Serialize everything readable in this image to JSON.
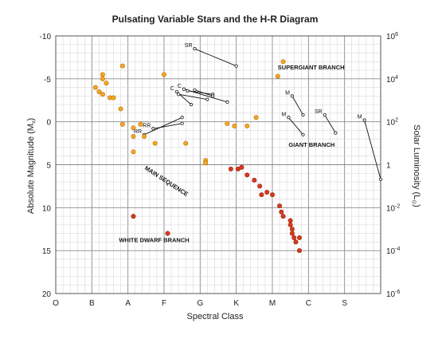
{
  "chart_data": {
    "type": "scatter",
    "title": "Pulsating Variable Stars and the H-R Diagram",
    "xlabel": "Spectral Class",
    "ylabel": "Absolute Magnitude (M",
    "ylabel_sub": "v",
    "ylabel_end": ")",
    "y2label": "Solar Luminosity (L",
    "y2label_sub": "⊙",
    "y2label_end": ")",
    "x_categories": [
      "O",
      "B",
      "A",
      "F",
      "G",
      "K",
      "M",
      "C",
      "S"
    ],
    "ylim": [
      -10,
      20
    ],
    "y_inverted": true,
    "y_ticks": [
      "-10",
      "-5",
      "0",
      "5",
      "10",
      "15",
      "20"
    ],
    "y2_ticks": [
      {
        "base": "10",
        "exp": "6"
      },
      {
        "base": "10",
        "exp": "4"
      },
      {
        "base": "10",
        "exp": "2"
      },
      {
        "base": "1",
        "exp": ""
      },
      {
        "base": "10",
        "exp": "-2"
      },
      {
        "base": "10",
        "exp": "-4"
      },
      {
        "base": "10",
        "exp": "-6"
      }
    ],
    "grid": true,
    "annotations": [
      {
        "text": "SUPERGIANT BRANCH",
        "x": 6.15,
        "y": -6.1
      },
      {
        "text": "GIANT BRANCH",
        "x": 6.45,
        "y": 2.9
      },
      {
        "text": "MAIN SEQUENCE",
        "x": 2.45,
        "y": 5.5,
        "rotate": 33
      },
      {
        "text": "WHITE DWARF BRANCH",
        "x": 1.75,
        "y": 14.0
      }
    ],
    "series": [
      {
        "type": "orange",
        "color": "#f5a623",
        "points": [
          [
            1.1,
            -4.0
          ],
          [
            1.2,
            -3.5
          ],
          [
            1.3,
            -5.5
          ],
          [
            1.3,
            -5.0
          ],
          [
            1.4,
            -4.5
          ],
          [
            1.3,
            -3.2
          ],
          [
            1.5,
            -2.8
          ],
          [
            1.6,
            -2.8
          ],
          [
            1.85,
            -6.5
          ],
          [
            1.8,
            -1.5
          ],
          [
            1.85,
            0.3
          ],
          [
            2.15,
            0.7
          ],
          [
            2.15,
            1.7
          ],
          [
            2.35,
            0.3
          ],
          [
            2.45,
            1.7
          ],
          [
            2.15,
            3.5
          ],
          [
            2.75,
            2.5
          ],
          [
            3.0,
            -5.5
          ],
          [
            3.6,
            2.5
          ],
          [
            4.15,
            4.5
          ],
          [
            4.15,
            4.8
          ],
          [
            4.75,
            0.2
          ],
          [
            4.95,
            0.5
          ],
          [
            5.3,
            0.5
          ],
          [
            5.55,
            -0.5
          ],
          [
            6.15,
            -5.3
          ],
          [
            6.3,
            -7.0
          ]
        ]
      },
      {
        "type": "red",
        "color": "#d9391e",
        "points": [
          [
            2.15,
            11.0
          ],
          [
            3.1,
            13.0
          ],
          [
            4.85,
            5.5
          ],
          [
            5.05,
            5.5
          ],
          [
            5.15,
            5.3
          ],
          [
            5.3,
            6.2
          ],
          [
            5.5,
            6.8
          ],
          [
            5.65,
            7.5
          ],
          [
            5.7,
            8.5
          ],
          [
            5.85,
            8.2
          ],
          [
            6.0,
            8.5
          ],
          [
            6.2,
            9.8
          ],
          [
            6.25,
            10.5
          ],
          [
            6.3,
            11.0
          ],
          [
            6.5,
            11.5
          ],
          [
            6.5,
            12.0
          ],
          [
            6.55,
            12.5
          ],
          [
            6.55,
            13.0
          ],
          [
            6.6,
            13.5
          ],
          [
            6.65,
            14.0
          ],
          [
            6.75,
            13.5
          ],
          [
            6.75,
            15.0
          ]
        ]
      }
    ],
    "tracks": [
      {
        "label": "SR",
        "x0": 3.85,
        "y0": -8.5,
        "x1": 5.0,
        "y1": -6.5
      },
      {
        "label": "RR",
        "x0": 2.45,
        "y0": 1.5,
        "x1": 3.5,
        "y1": -0.5
      },
      {
        "label": "RR",
        "x0": 2.7,
        "y0": 0.8,
        "x1": 3.5,
        "y1": 0.2
      },
      {
        "label": "C",
        "x0": 3.35,
        "y0": -3.5,
        "x1": 3.75,
        "y1": -2.0
      },
      {
        "label": "C",
        "x0": 3.55,
        "y0": -3.8,
        "x1": 4.75,
        "y1": -2.3
      },
      {
        "label": "",
        "x0": 3.4,
        "y0": -3.2,
        "x1": 4.2,
        "y1": -2.6
      },
      {
        "label": "",
        "x0": 3.65,
        "y0": -3.6,
        "x1": 4.35,
        "y1": -3.2
      },
      {
        "label": "",
        "x0": 3.85,
        "y0": -3.7,
        "x1": 4.35,
        "y1": -3.0
      },
      {
        "label": "M",
        "x0": 6.55,
        "y0": -3.0,
        "x1": 6.85,
        "y1": -0.8
      },
      {
        "label": "M",
        "x0": 6.45,
        "y0": -0.5,
        "x1": 6.85,
        "y1": 1.5
      },
      {
        "label": "SR",
        "x0": 7.45,
        "y0": -0.8,
        "x1": 7.75,
        "y1": 1.3
      },
      {
        "label": "M",
        "x0": 8.55,
        "y0": -0.2,
        "x1": 9.0,
        "y1": 6.7
      }
    ]
  }
}
